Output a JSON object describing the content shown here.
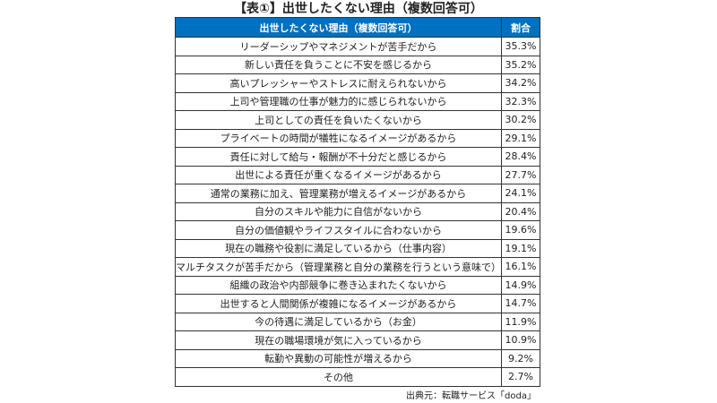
{
  "title": "【表①】出世したくない理由（複数回答可）",
  "table": {
    "headers": [
      "出世したくない理由（複数回答可）",
      "割合"
    ],
    "rows": [
      {
        "reason": "リーダーシップやマネジメントが苦手だから",
        "pct": "35.3%"
      },
      {
        "reason": "新しい責任を負うことに不安を感じるから",
        "pct": "35.2%"
      },
      {
        "reason": "高いプレッシャーやストレスに耐えられないから",
        "pct": "34.2%"
      },
      {
        "reason": "上司や管理職の仕事が魅力的に感じられないから",
        "pct": "32.3%"
      },
      {
        "reason": "上司としての責任を負いたくないから",
        "pct": "30.2%"
      },
      {
        "reason": "プライベートの時間が犠牲になるイメージがあるから",
        "pct": "29.1%"
      },
      {
        "reason": "責任に対して給与・報酬が不十分だと感じるから",
        "pct": "28.4%"
      },
      {
        "reason": "出世による責任が重くなるイメージがあるから",
        "pct": "27.7%"
      },
      {
        "reason": "通常の業務に加え、管理業務が増えるイメージがあるから",
        "pct": "24.1%"
      },
      {
        "reason": "自分のスキルや能力に自信がないから",
        "pct": "20.4%"
      },
      {
        "reason": "自分の価値観やライフスタイルに合わないから",
        "pct": "19.6%"
      },
      {
        "reason": "現在の職務や役割に満足しているから（仕事内容）",
        "pct": "19.1%"
      },
      {
        "reason": "マルチタスクが苦手だから（管理業務と自分の業務を行うという意味で）",
        "pct": "16.1%"
      },
      {
        "reason": "組織の政治や内部競争に巻き込まれたくないから",
        "pct": "14.9%"
      },
      {
        "reason": "出世すると人間関係が複雑になるイメージがあるから",
        "pct": "14.7%"
      },
      {
        "reason": "今の待遇に満足しているから（お金）",
        "pct": "11.9%"
      },
      {
        "reason": "現在の職場環境が気に入っているから",
        "pct": "10.9%"
      },
      {
        "reason": "転勤や異動の可能性が増えるから",
        "pct": "9.2%"
      },
      {
        "reason": "その他",
        "pct": "2.7%"
      }
    ]
  },
  "footer": "出典元：転職サービス「doda」",
  "colors": {
    "header_bg": "#0070c0"
  }
}
